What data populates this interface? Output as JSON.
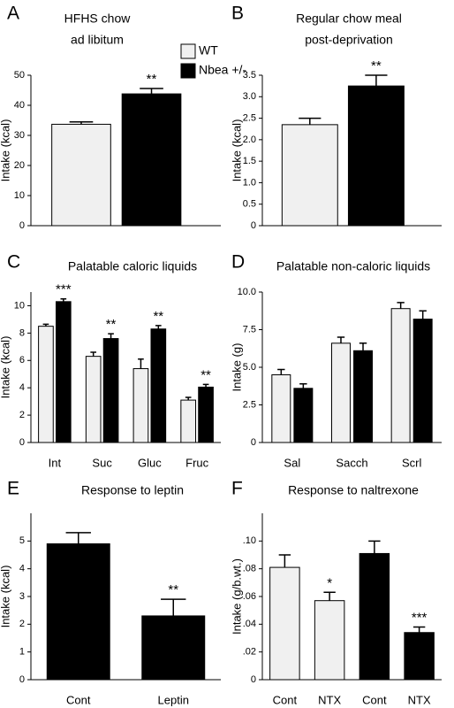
{
  "chart_data": [
    {
      "type": "bar",
      "label": "A",
      "title": [
        "HFHS chow",
        "ad libitum"
      ],
      "ylabel": "Intake (kcal)",
      "ylim": [
        0,
        50
      ],
      "yticks": [
        0,
        10,
        20,
        30,
        40,
        50
      ],
      "legend": "upper right",
      "series": [
        {
          "name": "WT",
          "color": "#f0f0f0",
          "values": [
            33.7
          ],
          "errors": [
            0.8
          ]
        },
        {
          "name": "Nbea +/-",
          "color": "#000000",
          "values": [
            43.8
          ],
          "errors": [
            1.8
          ],
          "annotations": [
            "**"
          ]
        }
      ]
    },
    {
      "type": "bar",
      "label": "B",
      "title": [
        "Regular chow meal",
        "post-deprivation"
      ],
      "ylabel": "Intake (kcal)",
      "ylim": [
        0,
        3.5
      ],
      "yticks": [
        0,
        {
          "value": 0.5,
          "label": "0.5"
        },
        {
          "value": 1,
          "label": "1.0"
        },
        {
          "value": 1.5,
          "label": "1.5"
        },
        {
          "value": 2,
          "label": "2.0"
        },
        {
          "value": 2.5,
          "label": "2.5"
        },
        {
          "value": 3,
          "label": "3.0"
        },
        {
          "value": 3.5,
          "label": "3.5"
        }
      ],
      "series": [
        {
          "color": "#f0f0f0",
          "values": [
            2.35
          ],
          "errors": [
            0.15
          ]
        },
        {
          "color": "#000000",
          "values": [
            3.25
          ],
          "errors": [
            0.25
          ],
          "annotations": [
            "**"
          ]
        }
      ]
    },
    {
      "type": "bar",
      "label": "C",
      "title": [
        "Palatable caloric liquids"
      ],
      "ylabel": "Intake (kcal)",
      "ylim": [
        0,
        11
      ],
      "yticks": [
        0,
        2,
        4,
        6,
        8,
        10
      ],
      "categories": [
        "Int",
        "Suc",
        "Gluc",
        "Fruc"
      ],
      "series": [
        {
          "color": "#f0f0f0",
          "values": [
            8.5,
            6.3,
            5.4,
            3.1
          ],
          "errors": [
            0.15,
            0.3,
            0.7,
            0.2
          ]
        },
        {
          "color": "#000000",
          "values": [
            10.3,
            7.6,
            8.3,
            4.05
          ],
          "errors": [
            0.2,
            0.35,
            0.25,
            0.2
          ],
          "annotations": [
            "***",
            "**",
            "**",
            "**"
          ]
        }
      ]
    },
    {
      "type": "bar",
      "label": "D",
      "title": [
        "Palatable non-caloric liquids"
      ],
      "ylabel": "Intake (g)",
      "ylim": [
        0,
        10
      ],
      "yticks": [
        0,
        2.5,
        {
          "value": 5,
          "label": "5.0"
        },
        7.5,
        {
          "value": 10,
          "label": "10.0"
        }
      ],
      "categories": [
        "Sal",
        "Sacch",
        "Scrl"
      ],
      "series": [
        {
          "color": "#f0f0f0",
          "values": [
            4.5,
            6.6,
            8.9
          ],
          "errors": [
            0.35,
            0.4,
            0.4
          ]
        },
        {
          "color": "#000000",
          "values": [
            3.6,
            6.1,
            8.2
          ],
          "errors": [
            0.3,
            0.5,
            0.55
          ]
        }
      ]
    },
    {
      "type": "bar",
      "label": "E",
      "title": [
        "Response to leptin"
      ],
      "ylabel": "Intake (kcal)",
      "ylim": [
        0,
        6
      ],
      "yticks": [
        0,
        1,
        2,
        3,
        4,
        5
      ],
      "categories": [
        "Cont",
        "Leptin"
      ],
      "series": [
        {
          "colors": [
            "#000000",
            "#000000"
          ],
          "values": [
            4.9,
            2.3
          ],
          "errors": [
            0.4,
            0.6
          ],
          "annotations": [
            null,
            "**"
          ]
        }
      ]
    },
    {
      "type": "bar",
      "label": "F",
      "title": [
        "Response to naltrexone"
      ],
      "ylabel": "Intake (g/b.wt.)",
      "ylim": [
        0,
        0.12
      ],
      "yticks": [
        0,
        {
          "value": 0.02,
          "label": ".02"
        },
        {
          "value": 0.04,
          "label": ".04"
        },
        {
          "value": 0.06,
          "label": ".06"
        },
        {
          "value": 0.08,
          "label": ".08"
        },
        {
          "value": 0.1,
          "label": ".10"
        }
      ],
      "categories": [
        "Cont",
        "NTX",
        "Cont",
        "NTX"
      ],
      "series": [
        {
          "colors": [
            "#f0f0f0",
            "#f0f0f0",
            "#000000",
            "#000000"
          ],
          "values": [
            0.081,
            0.057,
            0.091,
            0.034
          ],
          "errors": [
            0.009,
            0.006,
            0.009,
            0.004
          ],
          "annotations": [
            null,
            "*",
            null,
            "***"
          ]
        }
      ]
    }
  ]
}
